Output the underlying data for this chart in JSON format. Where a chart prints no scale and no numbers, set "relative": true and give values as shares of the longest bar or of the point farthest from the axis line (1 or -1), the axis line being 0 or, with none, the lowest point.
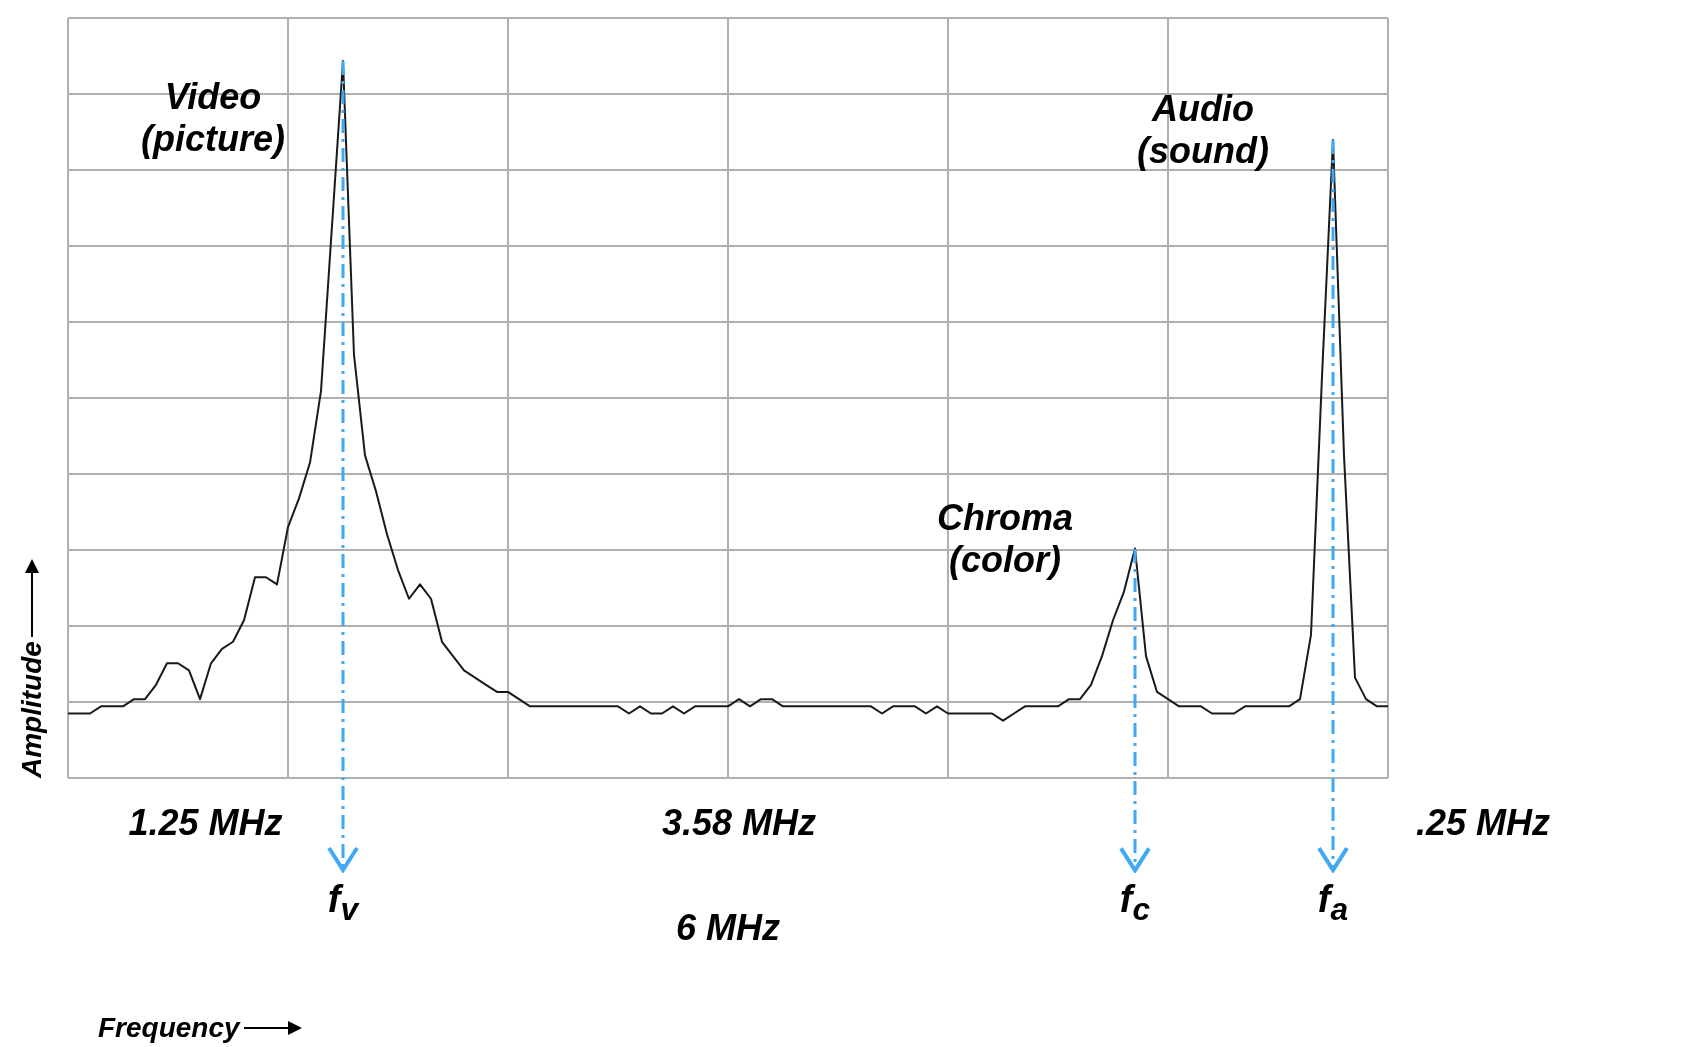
{
  "chart_data": {
    "type": "line",
    "relative": true,
    "ylabel": "Amplitude",
    "tick_labels": false,
    "grid": true,
    "color": "#1a1a1a",
    "categories": [
      null,
      null,
      null,
      null,
      null,
      null,
      null,
      null,
      null,
      null,
      null,
      null,
      null,
      null,
      null,
      null,
      null,
      null,
      null,
      null,
      null,
      null,
      null,
      null,
      null,
      null,
      null,
      null,
      null,
      null,
      null,
      null,
      null,
      null,
      null,
      null,
      null,
      null,
      null,
      null,
      null,
      null,
      null,
      null,
      null,
      null,
      null,
      null,
      null,
      null,
      null,
      null,
      null,
      null,
      null,
      null,
      null,
      null,
      null,
      null,
      null,
      null,
      null,
      null,
      null,
      null,
      null,
      null,
      null,
      null,
      null,
      null,
      null,
      null,
      null,
      null,
      null,
      null,
      null,
      null,
      null,
      null,
      null,
      null,
      null,
      null,
      null,
      null,
      null,
      null,
      null,
      null,
      null,
      null,
      null,
      null,
      null,
      null,
      null,
      null,
      null,
      null,
      null,
      null,
      null,
      null,
      null,
      null,
      null,
      null,
      null,
      null,
      null,
      null,
      null,
      null,
      null,
      null,
      null,
      null,
      null
    ],
    "values": [
      0.09,
      0.09,
      0.09,
      0.1,
      0.1,
      0.1,
      0.11,
      0.11,
      0.13,
      0.16,
      0.16,
      0.15,
      0.11,
      0.16,
      0.18,
      0.19,
      0.22,
      0.28,
      0.28,
      0.27,
      0.35,
      0.39,
      0.44,
      0.54,
      0.77,
      1,
      0.59,
      0.45,
      0.4,
      0.34,
      0.29,
      0.25,
      0.27,
      0.25,
      0.19,
      0.17,
      0.15,
      0.14,
      0.13,
      0.12,
      0.12,
      0.11,
      0.1,
      0.1,
      0.1,
      0.1,
      0.1,
      0.1,
      0.1,
      0.1,
      0.1,
      0.09,
      0.1,
      0.09,
      0.09,
      0.1,
      0.09,
      0.1,
      0.1,
      0.1,
      0.1,
      0.11,
      0.1,
      0.11,
      0.11,
      0.1,
      0.1,
      0.1,
      0.1,
      0.1,
      0.1,
      0.1,
      0.1,
      0.1,
      0.09,
      0.1,
      0.1,
      0.1,
      0.09,
      0.1,
      0.09,
      0.09,
      0.09,
      0.09,
      0.09,
      0.08,
      0.09,
      0.1,
      0.1,
      0.1,
      0.1,
      0.11,
      0.11,
      0.13,
      0.17,
      0.22,
      0.26,
      0.32,
      0.17,
      0.12,
      0.11,
      0.1,
      0.1,
      0.1,
      0.09,
      0.09,
      0.09,
      0.1,
      0.1,
      0.1,
      0.1,
      0.1,
      0.11,
      0.2,
      0.56,
      0.89,
      0.45,
      0.14,
      0.11,
      0.1,
      0.1
    ],
    "ref_lines": [
      {
        "axis": "x",
        "label": "f$_{v}$",
        "color": "#3fa9f5",
        "line_style": "dashdot"
      },
      {
        "axis": "x",
        "label": "f$_{c}$",
        "color": "#3fa9f5",
        "line_style": "dashdot"
      },
      {
        "axis": "x",
        "label": "f$_{a}$",
        "color": "#3fa9f5",
        "line_style": "dashdot"
      }
    ],
    "annotations": [
      "Video (picture)",
      "Chroma (color)",
      "Audio (sound)",
      "1.25 MHz",
      "3.58 MHz",
      ".25 MHz",
      "6 MHz",
      "Frequency"
    ]
  }
}
